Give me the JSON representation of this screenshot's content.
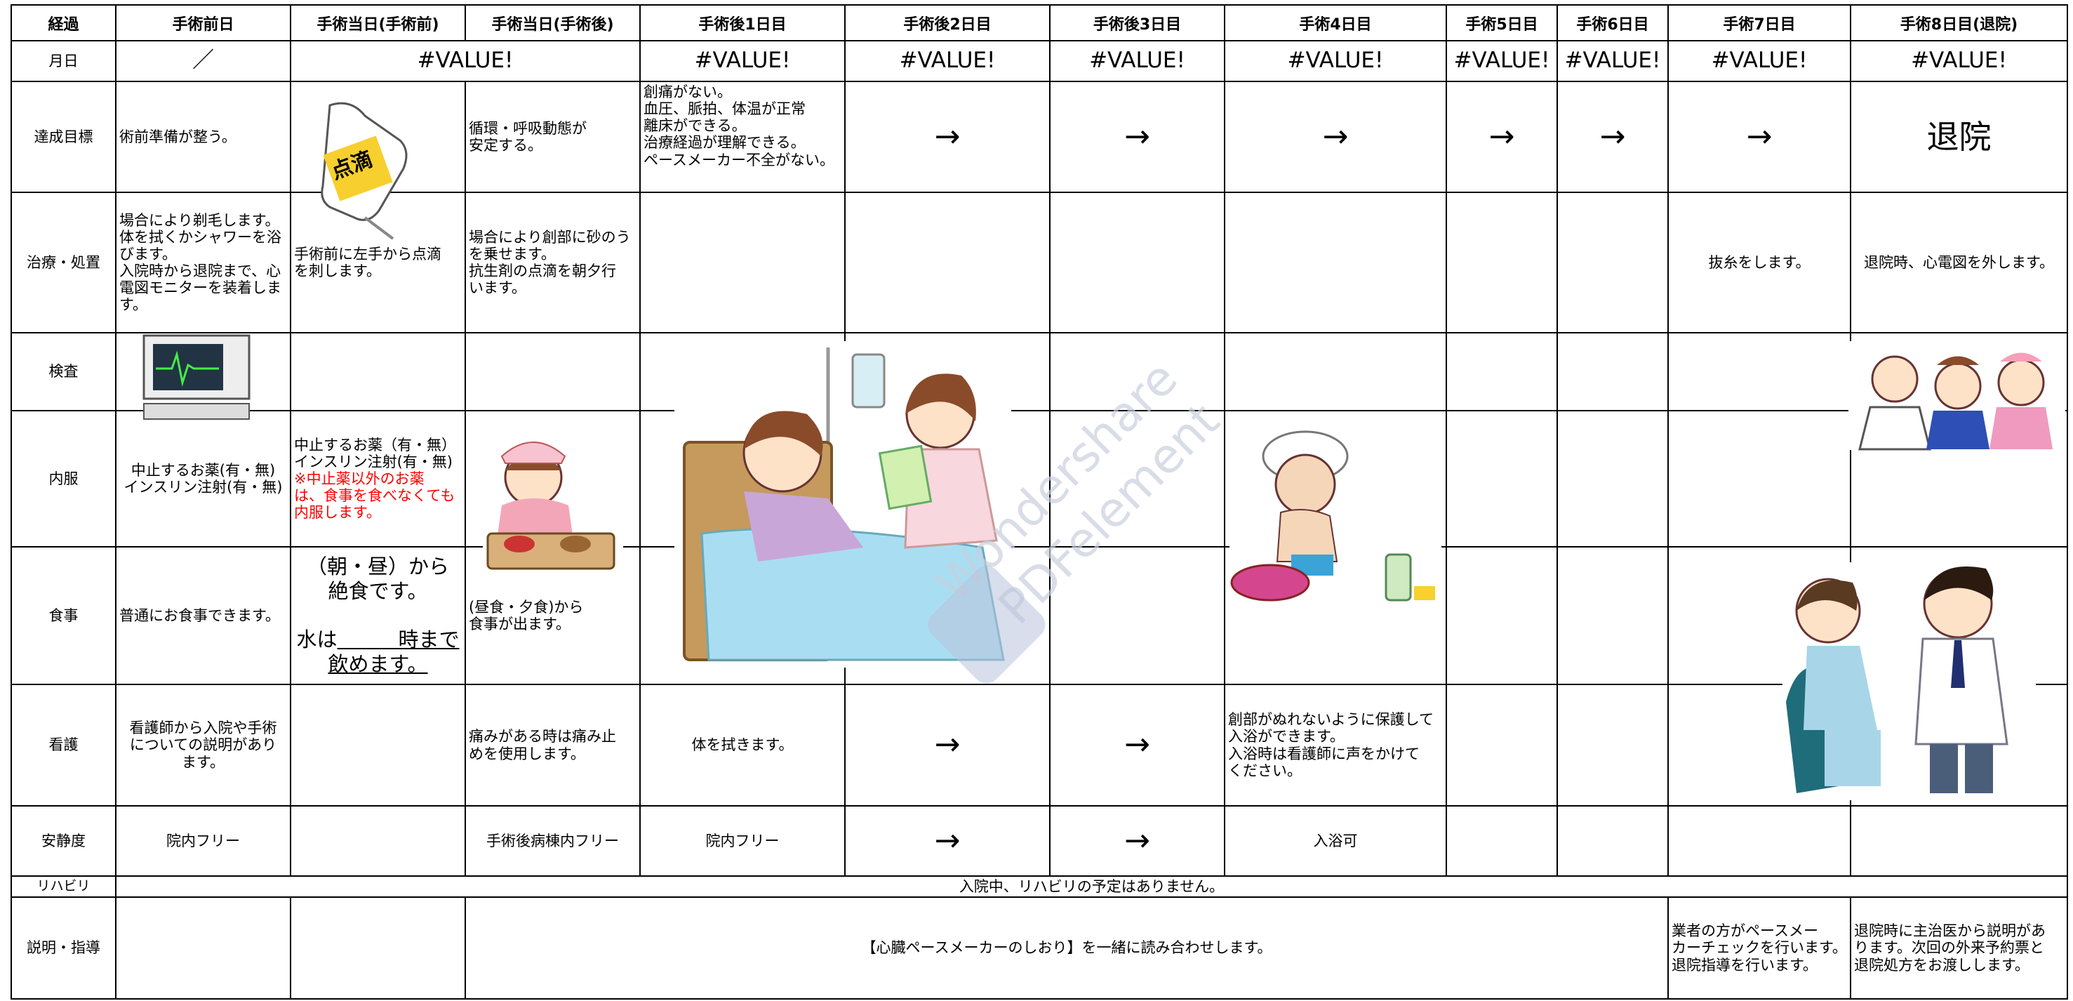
{
  "header": [
    "経過",
    "手術前日",
    "手術当日(手術前)",
    "手術当日(手術後)",
    "手術後1日目",
    "手術後2日目",
    "手術後3日目",
    "手術4日目",
    "手術5日目",
    "手術6日目",
    "手術7日目",
    "手術8日目(退院)"
  ],
  "date_row": {
    "label": "月日",
    "cells": [
      "／",
      "#VALUE!",
      "#VALUE!",
      "#VALUE!",
      "#VALUE!",
      "#VALUE!",
      "#VALUE!",
      "#VALUE!",
      "#VALUE!",
      "#VALUE!"
    ]
  },
  "rows": [
    {
      "label": "達成目標",
      "cells": [
        "術前準備が整う。",
        "循環・呼吸動態が\n安定する。",
        "創痛がない。\n血圧、脈拍、体温が正常\n離床ができる。\n治療経過が理解できる。\nペースメーカー不全がない。",
        "→",
        "→",
        "→",
        "→",
        "→",
        "→",
        "退院"
      ]
    },
    {
      "label": "治療・処置",
      "cells": [
        "場合により剃毛します。\n体を拭くかシャワーを浴\nびます。\n入院時から退院まで、心\n電図モニターを装着しま\nす。",
        "手術前に左手から点滴\nを刺します。",
        "場合により創部に砂のう\nを乗せます。\n抗生剤の点滴を朝夕行\nいます。",
        "抜糸をします。",
        "退院時、心電図を外します。"
      ]
    },
    {
      "label": "検査",
      "cells": []
    },
    {
      "label": "内服",
      "cells": [
        "中止するお薬(有・無)\nインスリン注射(有・無)",
        "中止するお薬（有・無）\nインスリン注射(有・無)",
        "※中止薬以外のお薬\nは、食事を食べなくても\n内服します。"
      ]
    },
    {
      "label": "食事",
      "cells": [
        "普通にお食事できます。",
        "（朝・昼）から\n絶食です。",
        "水は",
        "　　　時まで",
        "飲めます。",
        "(昼食・夕食)から\n食事が出ます。"
      ]
    },
    {
      "label": "看護",
      "cells": [
        "看護師から入院や手術\nについての説明があり\nます。",
        "痛みがある時は痛み止\nめを使用します。",
        "体を拭きます。",
        "→",
        "→",
        "創部がぬれないように保護して\n入浴ができます。\n入浴時は看護師に声をかけて\nください。"
      ]
    },
    {
      "label": "安静度",
      "cells": [
        "院内フリー",
        "手術後病棟内フリー",
        "院内フリー",
        "→",
        "→",
        "入浴可"
      ]
    },
    {
      "label": "リハビリ",
      "cells": [
        "入院中、リハビリの予定はありません。"
      ]
    },
    {
      "label": "説明・指導",
      "cells": [
        "【心臓ペースメーカーのしおり】を一緒に読み合わせします。",
        "業者の方がペースメー\nカーチェックを行います。\n退院指導を行います。",
        "退院時に主治医から説明があ\nります。次回の外来予約票と\n退院処方をお渡しします。"
      ]
    }
  ],
  "iv_label": "点滴",
  "watermark": [
    "Wondershare",
    "PDFelement"
  ]
}
